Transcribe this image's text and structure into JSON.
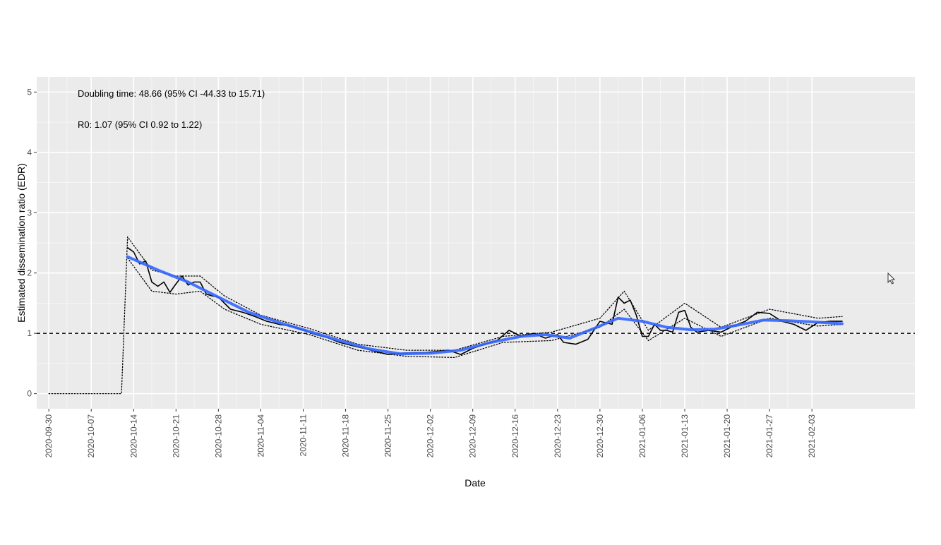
{
  "chart_data": {
    "type": "line",
    "title": "",
    "xlabel": "Date",
    "ylabel": "Estimated dissemination ratio (EDR)",
    "x_type": "date",
    "xlim": [
      "2020-09-28",
      "2021-02-20"
    ],
    "ylim": [
      -0.25,
      5.25
    ],
    "x_ticks": [
      "2020-09-30",
      "2020-10-07",
      "2020-10-14",
      "2020-10-21",
      "2020-10-28",
      "2020-11-04",
      "2020-11-11",
      "2020-11-18",
      "2020-11-25",
      "2020-12-02",
      "2020-12-09",
      "2020-12-16",
      "2020-12-23",
      "2020-12-30",
      "2021-01-06",
      "2021-01-13",
      "2021-01-20",
      "2021-01-27",
      "2021-02-03"
    ],
    "y_ticks": [
      "0",
      "1",
      "2",
      "3",
      "4",
      "5"
    ],
    "grid": true,
    "annotations": [
      "Doubling time: 48.66 (95% CI -44.33 to 15.71)",
      "R0: 1.07 (95% CI 0.92 to 1.22)"
    ],
    "reference_line": {
      "y": 1,
      "style": "dashed",
      "color": "#000000"
    },
    "series": [
      {
        "role": "edr",
        "color": "#000000",
        "points": [
          [
            "2020-10-13",
            2.42
          ],
          [
            "2020-10-14",
            2.35
          ],
          [
            "2020-10-15",
            2.15
          ],
          [
            "2020-10-16",
            2.2
          ],
          [
            "2020-10-17",
            1.85
          ],
          [
            "2020-10-18",
            1.78
          ],
          [
            "2020-10-19",
            1.85
          ],
          [
            "2020-10-20",
            1.68
          ],
          [
            "2020-10-21",
            1.82
          ],
          [
            "2020-10-22",
            1.95
          ],
          [
            "2020-10-23",
            1.8
          ],
          [
            "2020-10-24",
            1.85
          ],
          [
            "2020-10-25",
            1.85
          ],
          [
            "2020-10-26",
            1.65
          ],
          [
            "2020-10-27",
            1.62
          ],
          [
            "2020-10-28",
            1.6
          ],
          [
            "2020-10-29",
            1.5
          ],
          [
            "2020-10-30",
            1.4
          ],
          [
            "2020-11-01",
            1.35
          ],
          [
            "2020-11-03",
            1.28
          ],
          [
            "2020-11-05",
            1.2
          ],
          [
            "2020-11-07",
            1.15
          ],
          [
            "2020-11-09",
            1.12
          ],
          [
            "2020-11-11",
            1.05
          ],
          [
            "2020-11-13",
            0.98
          ],
          [
            "2020-11-15",
            0.93
          ],
          [
            "2020-11-17",
            0.85
          ],
          [
            "2020-11-19",
            0.8
          ],
          [
            "2020-11-21",
            0.75
          ],
          [
            "2020-11-23",
            0.7
          ],
          [
            "2020-11-25",
            0.65
          ],
          [
            "2020-11-27",
            0.67
          ],
          [
            "2020-11-29",
            0.68
          ],
          [
            "2020-12-01",
            0.68
          ],
          [
            "2020-12-03",
            0.7
          ],
          [
            "2020-12-05",
            0.72
          ],
          [
            "2020-12-07",
            0.65
          ],
          [
            "2020-12-09",
            0.75
          ],
          [
            "2020-12-11",
            0.82
          ],
          [
            "2020-12-13",
            0.88
          ],
          [
            "2020-12-15",
            1.05
          ],
          [
            "2020-12-17",
            0.95
          ],
          [
            "2020-12-19",
            1.0
          ],
          [
            "2020-12-21",
            0.92
          ],
          [
            "2020-12-23",
            0.98
          ],
          [
            "2020-12-24",
            0.85
          ],
          [
            "2020-12-26",
            0.82
          ],
          [
            "2020-12-28",
            0.9
          ],
          [
            "2020-12-30",
            1.2
          ],
          [
            "2021-01-01",
            1.15
          ],
          [
            "2021-01-02",
            1.6
          ],
          [
            "2021-01-03",
            1.5
          ],
          [
            "2021-01-04",
            1.55
          ],
          [
            "2021-01-05",
            1.3
          ],
          [
            "2021-01-06",
            0.95
          ],
          [
            "2021-01-07",
            0.95
          ],
          [
            "2021-01-08",
            1.15
          ],
          [
            "2021-01-09",
            1.05
          ],
          [
            "2021-01-10",
            1.05
          ],
          [
            "2021-01-11",
            1.02
          ],
          [
            "2021-01-12",
            1.35
          ],
          [
            "2021-01-13",
            1.38
          ],
          [
            "2021-01-14",
            1.1
          ],
          [
            "2021-01-15",
            1.02
          ],
          [
            "2021-01-17",
            1.05
          ],
          [
            "2021-01-19",
            1.02
          ],
          [
            "2021-01-21",
            1.12
          ],
          [
            "2021-01-23",
            1.2
          ],
          [
            "2021-01-25",
            1.35
          ],
          [
            "2021-01-27",
            1.33
          ],
          [
            "2021-01-29",
            1.2
          ],
          [
            "2021-01-31",
            1.15
          ],
          [
            "2021-02-02",
            1.05
          ],
          [
            "2021-02-04",
            1.18
          ],
          [
            "2021-02-06",
            1.2
          ],
          [
            "2021-02-08",
            1.2
          ]
        ]
      },
      {
        "role": "smoothed-trend",
        "color": "#3366ff",
        "points": [
          [
            "2020-10-13",
            2.27
          ],
          [
            "2020-10-18",
            2.05
          ],
          [
            "2020-10-23",
            1.85
          ],
          [
            "2020-10-28",
            1.6
          ],
          [
            "2020-11-02",
            1.35
          ],
          [
            "2020-11-07",
            1.18
          ],
          [
            "2020-11-12",
            1.03
          ],
          [
            "2020-11-17",
            0.88
          ],
          [
            "2020-11-22",
            0.74
          ],
          [
            "2020-11-27",
            0.66
          ],
          [
            "2020-12-02",
            0.67
          ],
          [
            "2020-12-07",
            0.72
          ],
          [
            "2020-12-12",
            0.85
          ],
          [
            "2020-12-17",
            0.95
          ],
          [
            "2020-12-21",
            0.98
          ],
          [
            "2020-12-25",
            0.92
          ],
          [
            "2020-12-29",
            1.08
          ],
          [
            "2021-01-02",
            1.25
          ],
          [
            "2021-01-06",
            1.2
          ],
          [
            "2021-01-10",
            1.1
          ],
          [
            "2021-01-14",
            1.06
          ],
          [
            "2021-01-18",
            1.07
          ],
          [
            "2021-01-22",
            1.14
          ],
          [
            "2021-01-26",
            1.22
          ],
          [
            "2021-01-30",
            1.21
          ],
          [
            "2021-02-03",
            1.19
          ],
          [
            "2021-02-08",
            1.16
          ]
        ]
      },
      {
        "role": "dotted-bound",
        "color": "#000000",
        "points": [
          [
            "2020-09-30",
            0
          ],
          [
            "2020-10-12",
            0
          ],
          [
            "2020-10-13",
            2.6
          ],
          [
            "2020-10-17",
            2.05
          ],
          [
            "2020-10-21",
            1.95
          ],
          [
            "2020-10-25",
            1.95
          ],
          [
            "2020-10-29",
            1.62
          ],
          [
            "2020-11-04",
            1.3
          ],
          [
            "2020-11-12",
            1.08
          ],
          [
            "2020-11-20",
            0.82
          ],
          [
            "2020-11-28",
            0.72
          ],
          [
            "2020-12-06",
            0.72
          ],
          [
            "2020-12-14",
            0.95
          ],
          [
            "2020-12-22",
            1.02
          ],
          [
            "2020-12-30",
            1.25
          ],
          [
            "2021-01-03",
            1.7
          ],
          [
            "2021-01-07",
            1.05
          ],
          [
            "2021-01-13",
            1.5
          ],
          [
            "2021-01-19",
            1.1
          ],
          [
            "2021-01-27",
            1.4
          ],
          [
            "2021-02-04",
            1.25
          ],
          [
            "2021-02-08",
            1.28
          ]
        ]
      },
      {
        "role": "dotted-bound",
        "color": "#000000",
        "points": [
          [
            "2020-10-13",
            2.25
          ],
          [
            "2020-10-17",
            1.7
          ],
          [
            "2020-10-21",
            1.65
          ],
          [
            "2020-10-25",
            1.7
          ],
          [
            "2020-10-29",
            1.4
          ],
          [
            "2020-11-04",
            1.15
          ],
          [
            "2020-11-12",
            0.98
          ],
          [
            "2020-11-20",
            0.72
          ],
          [
            "2020-11-28",
            0.62
          ],
          [
            "2020-12-06",
            0.6
          ],
          [
            "2020-12-14",
            0.85
          ],
          [
            "2020-12-22",
            0.88
          ],
          [
            "2020-12-30",
            1.1
          ],
          [
            "2021-01-03",
            1.4
          ],
          [
            "2021-01-07",
            0.88
          ],
          [
            "2021-01-13",
            1.25
          ],
          [
            "2021-01-19",
            0.95
          ],
          [
            "2021-01-27",
            1.25
          ],
          [
            "2021-02-04",
            1.12
          ],
          [
            "2021-02-08",
            1.15
          ]
        ]
      }
    ]
  }
}
